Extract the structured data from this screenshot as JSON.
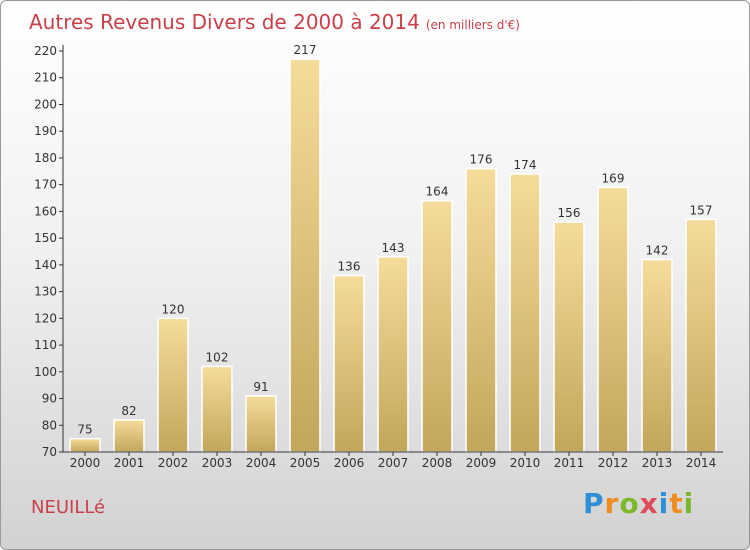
{
  "header": {
    "title": "Autres Revenus Divers de 2000 à 2014",
    "unit": "(en milliers d'€)"
  },
  "footer": {
    "commune": "NEUILLé",
    "logo": {
      "letters": [
        "P",
        "r",
        "o",
        "x",
        "i",
        "t",
        "i"
      ],
      "colors": [
        "#2e8fd8",
        "#f08c1e",
        "#7bb82b",
        "#e04a5a",
        "#2e8fd8",
        "#f08c1e",
        "#7bb82b"
      ]
    }
  },
  "chart_data": {
    "type": "bar",
    "categories": [
      "2000",
      "2001",
      "2002",
      "2003",
      "2004",
      "2005",
      "2006",
      "2007",
      "2008",
      "2009",
      "2010",
      "2011",
      "2012",
      "2013",
      "2014"
    ],
    "values": [
      75,
      82,
      120,
      102,
      91,
      217,
      136,
      143,
      164,
      176,
      174,
      156,
      169,
      142,
      157
    ],
    "ylim": [
      70,
      220
    ],
    "yticks": [
      70,
      80,
      90,
      100,
      110,
      120,
      130,
      140,
      150,
      160,
      170,
      180,
      190,
      200,
      210,
      220
    ],
    "grid": false,
    "colors": {
      "bar_top": "#f5dc9a",
      "bar_bottom": "#c2a65a",
      "axis": "#333333"
    }
  }
}
